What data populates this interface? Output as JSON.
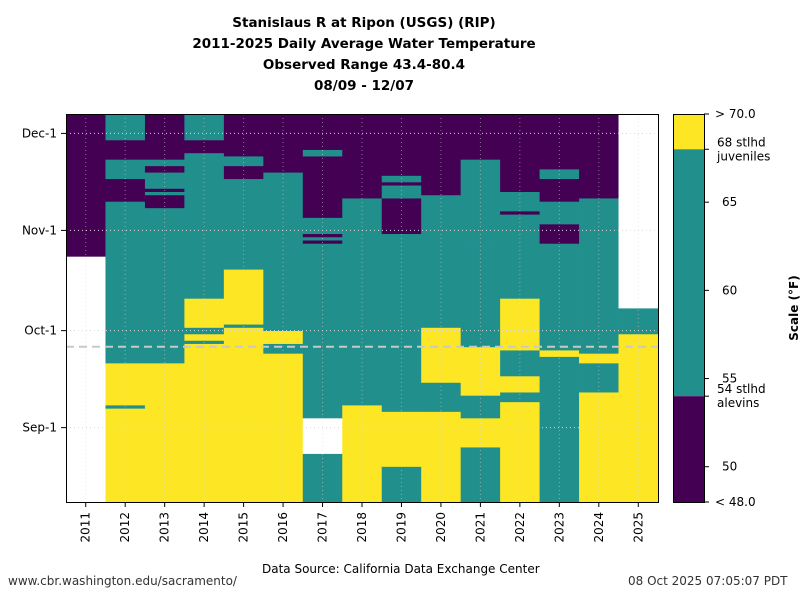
{
  "chart_data": {
    "type": "heatmap",
    "title": [
      "Stanislaus R at Ripon (USGS) (RIP)",
      "2011-2025 Daily Average Water Temperature",
      "Observed Range 43.4-80.4",
      "08/09 - 12/07"
    ],
    "xlabel": "",
    "ylabel": "",
    "x_categories": [
      "2011",
      "2012",
      "2013",
      "2014",
      "2015",
      "2016",
      "2017",
      "2018",
      "2019",
      "2020",
      "2021",
      "2022",
      "2023",
      "2024",
      "2025"
    ],
    "y_ticks": [
      "Sep-1",
      "Oct-1",
      "Nov-1",
      "Dec-1"
    ],
    "y_range": [
      "08/09",
      "12/07"
    ],
    "reference_line": "09/26",
    "colorbar": {
      "label": "Scale (°F)",
      "range": [
        48.0,
        70.0
      ],
      "ticks": [
        50,
        55,
        60,
        65
      ],
      "top_label": "> 70.0",
      "bottom_label": "< 48.0",
      "thresholds": [
        {
          "value": 54,
          "label_line1": "54 stlhd",
          "label_line2": "alevins"
        },
        {
          "value": 68,
          "label_line1": "68 stlhd",
          "label_line2": "juveniles"
        }
      ],
      "categories": [
        {
          "name": "above 68",
          "color": "#fde725"
        },
        {
          "name": "54-68",
          "color": "#21908d"
        },
        {
          "name": "below 54",
          "color": "#440154"
        },
        {
          "name": "no data",
          "color": "#ffffff"
        }
      ]
    },
    "codes": {
      "Y": "#fde725",
      "T": "#21908d",
      "P": "#440154",
      "W": "#ffffff"
    },
    "columns": [
      [
        [
          "08/09",
          "10/24",
          "W"
        ],
        [
          "10/24",
          "12/07",
          "P"
        ]
      ],
      [
        [
          "08/09",
          "09/07",
          "Y"
        ],
        [
          "09/07",
          "09/08",
          "T"
        ],
        [
          "09/08",
          "09/21",
          "Y"
        ],
        [
          "09/21",
          "11/10",
          "T"
        ],
        [
          "11/10",
          "11/17",
          "P"
        ],
        [
          "11/17",
          "11/23",
          "T"
        ],
        [
          "11/23",
          "11/29",
          "P"
        ],
        [
          "11/29",
          "12/07",
          "T"
        ]
      ],
      [
        [
          "08/09",
          "09/21",
          "Y"
        ],
        [
          "09/21",
          "11/08",
          "T"
        ],
        [
          "11/08",
          "11/12",
          "P"
        ],
        [
          "11/12",
          "11/13",
          "T"
        ],
        [
          "11/13",
          "11/14",
          "P"
        ],
        [
          "11/14",
          "11/19",
          "T"
        ],
        [
          "11/19",
          "11/21",
          "P"
        ],
        [
          "11/21",
          "11/23",
          "T"
        ],
        [
          "11/23",
          "12/07",
          "P"
        ]
      ],
      [
        [
          "08/09",
          "09/27",
          "Y"
        ],
        [
          "09/27",
          "09/28",
          "T"
        ],
        [
          "09/28",
          "09/30",
          "Y"
        ],
        [
          "09/30",
          "10/02",
          "T"
        ],
        [
          "10/02",
          "10/11",
          "Y"
        ],
        [
          "10/11",
          "11/25",
          "T"
        ],
        [
          "11/25",
          "11/29",
          "P"
        ],
        [
          "11/29",
          "12/07",
          "T"
        ]
      ],
      [
        [
          "08/09",
          "10/02",
          "Y"
        ],
        [
          "10/02",
          "10/03",
          "T"
        ],
        [
          "10/03",
          "10/20",
          "Y"
        ],
        [
          "10/20",
          "11/17",
          "T"
        ],
        [
          "11/17",
          "11/21",
          "P"
        ],
        [
          "11/21",
          "11/24",
          "T"
        ],
        [
          "11/24",
          "12/07",
          "P"
        ]
      ],
      [
        [
          "08/09",
          "09/24",
          "Y"
        ],
        [
          "09/24",
          "09/27",
          "T"
        ],
        [
          "09/27",
          "10/01",
          "Y"
        ],
        [
          "10/01",
          "11/19",
          "T"
        ],
        [
          "11/19",
          "11/24",
          "P"
        ],
        [
          "11/24",
          "12/07",
          "P"
        ]
      ],
      [
        [
          "08/09",
          "08/24",
          "T"
        ],
        [
          "08/24",
          "09/04",
          "W"
        ],
        [
          "09/04",
          "10/28",
          "T"
        ],
        [
          "10/28",
          "10/29",
          "P"
        ],
        [
          "10/29",
          "10/30",
          "T"
        ],
        [
          "10/30",
          "10/31",
          "P"
        ],
        [
          "10/31",
          "11/01",
          "T"
        ],
        [
          "11/01",
          "11/05",
          "T"
        ],
        [
          "11/05",
          "11/24",
          "P"
        ],
        [
          "11/24",
          "11/26",
          "T"
        ],
        [
          "11/26",
          "12/07",
          "P"
        ]
      ],
      [
        [
          "08/09",
          "09/08",
          "Y"
        ],
        [
          "09/08",
          "11/11",
          "T"
        ],
        [
          "11/11",
          "11/23",
          "P"
        ],
        [
          "11/23",
          "12/07",
          "P"
        ]
      ],
      [
        [
          "08/09",
          "08/20",
          "T"
        ],
        [
          "08/20",
          "09/06",
          "Y"
        ],
        [
          "09/06",
          "10/31",
          "T"
        ],
        [
          "10/31",
          "11/05",
          "P"
        ],
        [
          "11/05",
          "11/11",
          "P"
        ],
        [
          "11/11",
          "11/15",
          "T"
        ],
        [
          "11/15",
          "11/16",
          "P"
        ],
        [
          "11/16",
          "11/18",
          "T"
        ],
        [
          "11/18",
          "12/07",
          "P"
        ]
      ],
      [
        [
          "08/09",
          "09/06",
          "Y"
        ],
        [
          "09/06",
          "09/15",
          "T"
        ],
        [
          "09/15",
          "09/21",
          "Y"
        ],
        [
          "09/21",
          "10/02",
          "Y"
        ],
        [
          "10/02",
          "11/12",
          "T"
        ],
        [
          "11/12",
          "12/07",
          "P"
        ]
      ],
      [
        [
          "08/09",
          "08/26",
          "T"
        ],
        [
          "08/26",
          "09/04",
          "Y"
        ],
        [
          "09/04",
          "09/11",
          "T"
        ],
        [
          "09/11",
          "09/16",
          "Y"
        ],
        [
          "09/16",
          "09/26",
          "Y"
        ],
        [
          "09/26",
          "09/30",
          "T"
        ],
        [
          "09/30",
          "10/27",
          "T"
        ],
        [
          "10/27",
          "11/23",
          "T"
        ],
        [
          "11/23",
          "12/07",
          "P"
        ]
      ],
      [
        [
          "08/09",
          "09/09",
          "Y"
        ],
        [
          "09/09",
          "09/12",
          "T"
        ],
        [
          "09/12",
          "09/17",
          "Y"
        ],
        [
          "09/17",
          "09/25",
          "T"
        ],
        [
          "09/25",
          "10/11",
          "Y"
        ],
        [
          "10/11",
          "11/06",
          "T"
        ],
        [
          "11/06",
          "11/07",
          "P"
        ],
        [
          "11/07",
          "11/13",
          "T"
        ],
        [
          "11/13",
          "12/07",
          "P"
        ]
      ],
      [
        [
          "08/09",
          "09/23",
          "T"
        ],
        [
          "09/23",
          "09/25",
          "Y"
        ],
        [
          "09/25",
          "10/28",
          "T"
        ],
        [
          "10/28",
          "11/03",
          "P"
        ],
        [
          "11/03",
          "11/10",
          "T"
        ],
        [
          "11/10",
          "11/17",
          "P"
        ],
        [
          "11/17",
          "11/20",
          "T"
        ],
        [
          "11/20",
          "12/07",
          "P"
        ]
      ],
      [
        [
          "08/09",
          "09/12",
          "Y"
        ],
        [
          "09/12",
          "09/21",
          "T"
        ],
        [
          "09/21",
          "09/24",
          "Y"
        ],
        [
          "09/24",
          "11/11",
          "T"
        ],
        [
          "11/11",
          "11/12",
          "P"
        ],
        [
          "11/12",
          "12/07",
          "P"
        ]
      ],
      [
        [
          "08/09",
          "09/30",
          "Y"
        ],
        [
          "09/30",
          "10/08",
          "T"
        ],
        [
          "10/08",
          "12/07",
          "W"
        ]
      ]
    ]
  },
  "footer": {
    "source_url": "www.cbr.washington.edu/sacramento/",
    "data_source": "Data Source: California Data Exchange Center",
    "timestamp": "08 Oct 2025 07:05:07 PDT"
  }
}
